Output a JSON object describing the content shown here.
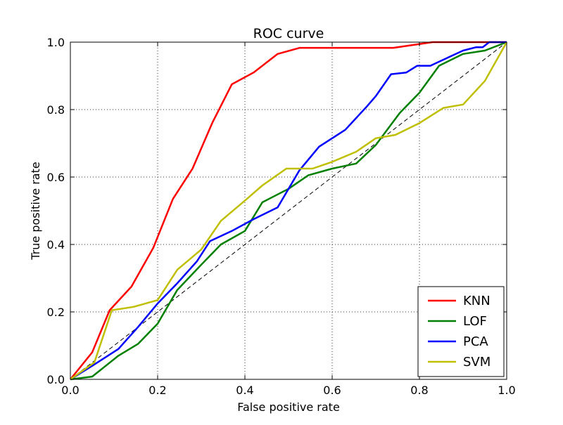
{
  "chart_data": {
    "type": "line",
    "title": "ROC curve",
    "xlabel": "False positive rate",
    "ylabel": "True positive rate",
    "xlim": [
      0.0,
      1.0
    ],
    "ylim": [
      0.0,
      1.0
    ],
    "xticks": [
      "0.0",
      "0.2",
      "0.4",
      "0.6",
      "0.8",
      "1.0"
    ],
    "yticks": [
      "0.0",
      "0.2",
      "0.4",
      "0.6",
      "0.8",
      "1.0"
    ],
    "grid": true,
    "legend_position": "lower-right",
    "reference_line": {
      "style": "dashed",
      "color": "#000000",
      "points": [
        [
          0,
          0
        ],
        [
          1,
          1
        ]
      ]
    },
    "series": [
      {
        "name": "KNN",
        "color": "#ff0000",
        "points": [
          [
            0,
            0
          ],
          [
            0.05,
            0.08
          ],
          [
            0.09,
            0.205
          ],
          [
            0.14,
            0.275
          ],
          [
            0.19,
            0.39
          ],
          [
            0.235,
            0.535
          ],
          [
            0.28,
            0.625
          ],
          [
            0.325,
            0.76
          ],
          [
            0.37,
            0.875
          ],
          [
            0.42,
            0.91
          ],
          [
            0.475,
            0.965
          ],
          [
            0.525,
            0.983
          ],
          [
            0.6,
            0.983
          ],
          [
            0.74,
            0.983
          ],
          [
            0.83,
            1.0
          ],
          [
            1.0,
            1.0
          ]
        ]
      },
      {
        "name": "LOF",
        "color": "#008000",
        "points": [
          [
            0,
            0
          ],
          [
            0.05,
            0.008
          ],
          [
            0.11,
            0.07
          ],
          [
            0.155,
            0.105
          ],
          [
            0.2,
            0.165
          ],
          [
            0.245,
            0.265
          ],
          [
            0.3,
            0.34
          ],
          [
            0.345,
            0.4
          ],
          [
            0.4,
            0.44
          ],
          [
            0.44,
            0.525
          ],
          [
            0.5,
            0.565
          ],
          [
            0.545,
            0.605
          ],
          [
            0.6,
            0.625
          ],
          [
            0.655,
            0.64
          ],
          [
            0.7,
            0.695
          ],
          [
            0.755,
            0.79
          ],
          [
            0.8,
            0.85
          ],
          [
            0.845,
            0.93
          ],
          [
            0.9,
            0.965
          ],
          [
            0.95,
            0.975
          ],
          [
            1.0,
            1.0
          ]
        ]
      },
      {
        "name": "PCA",
        "color": "#0000ff",
        "points": [
          [
            0,
            0
          ],
          [
            0.05,
            0.04
          ],
          [
            0.11,
            0.09
          ],
          [
            0.155,
            0.155
          ],
          [
            0.2,
            0.225
          ],
          [
            0.245,
            0.285
          ],
          [
            0.29,
            0.35
          ],
          [
            0.32,
            0.41
          ],
          [
            0.37,
            0.44
          ],
          [
            0.42,
            0.475
          ],
          [
            0.475,
            0.51
          ],
          [
            0.525,
            0.62
          ],
          [
            0.57,
            0.69
          ],
          [
            0.63,
            0.74
          ],
          [
            0.68,
            0.81
          ],
          [
            0.7,
            0.84
          ],
          [
            0.735,
            0.905
          ],
          [
            0.77,
            0.91
          ],
          [
            0.795,
            0.93
          ],
          [
            0.825,
            0.93
          ],
          [
            0.85,
            0.945
          ],
          [
            0.9,
            0.975
          ],
          [
            0.93,
            0.985
          ],
          [
            0.945,
            0.985
          ],
          [
            0.96,
            1.0
          ],
          [
            1.0,
            1.0
          ]
        ]
      },
      {
        "name": "SVM",
        "color": "#bfbf00",
        "points": [
          [
            0,
            0
          ],
          [
            0.055,
            0.05
          ],
          [
            0.095,
            0.205
          ],
          [
            0.145,
            0.215
          ],
          [
            0.2,
            0.235
          ],
          [
            0.245,
            0.325
          ],
          [
            0.3,
            0.385
          ],
          [
            0.345,
            0.47
          ],
          [
            0.4,
            0.53
          ],
          [
            0.44,
            0.575
          ],
          [
            0.495,
            0.625
          ],
          [
            0.555,
            0.625
          ],
          [
            0.6,
            0.645
          ],
          [
            0.655,
            0.675
          ],
          [
            0.7,
            0.715
          ],
          [
            0.745,
            0.725
          ],
          [
            0.8,
            0.76
          ],
          [
            0.855,
            0.805
          ],
          [
            0.9,
            0.815
          ],
          [
            0.95,
            0.885
          ],
          [
            1.0,
            1.0
          ]
        ]
      }
    ]
  }
}
